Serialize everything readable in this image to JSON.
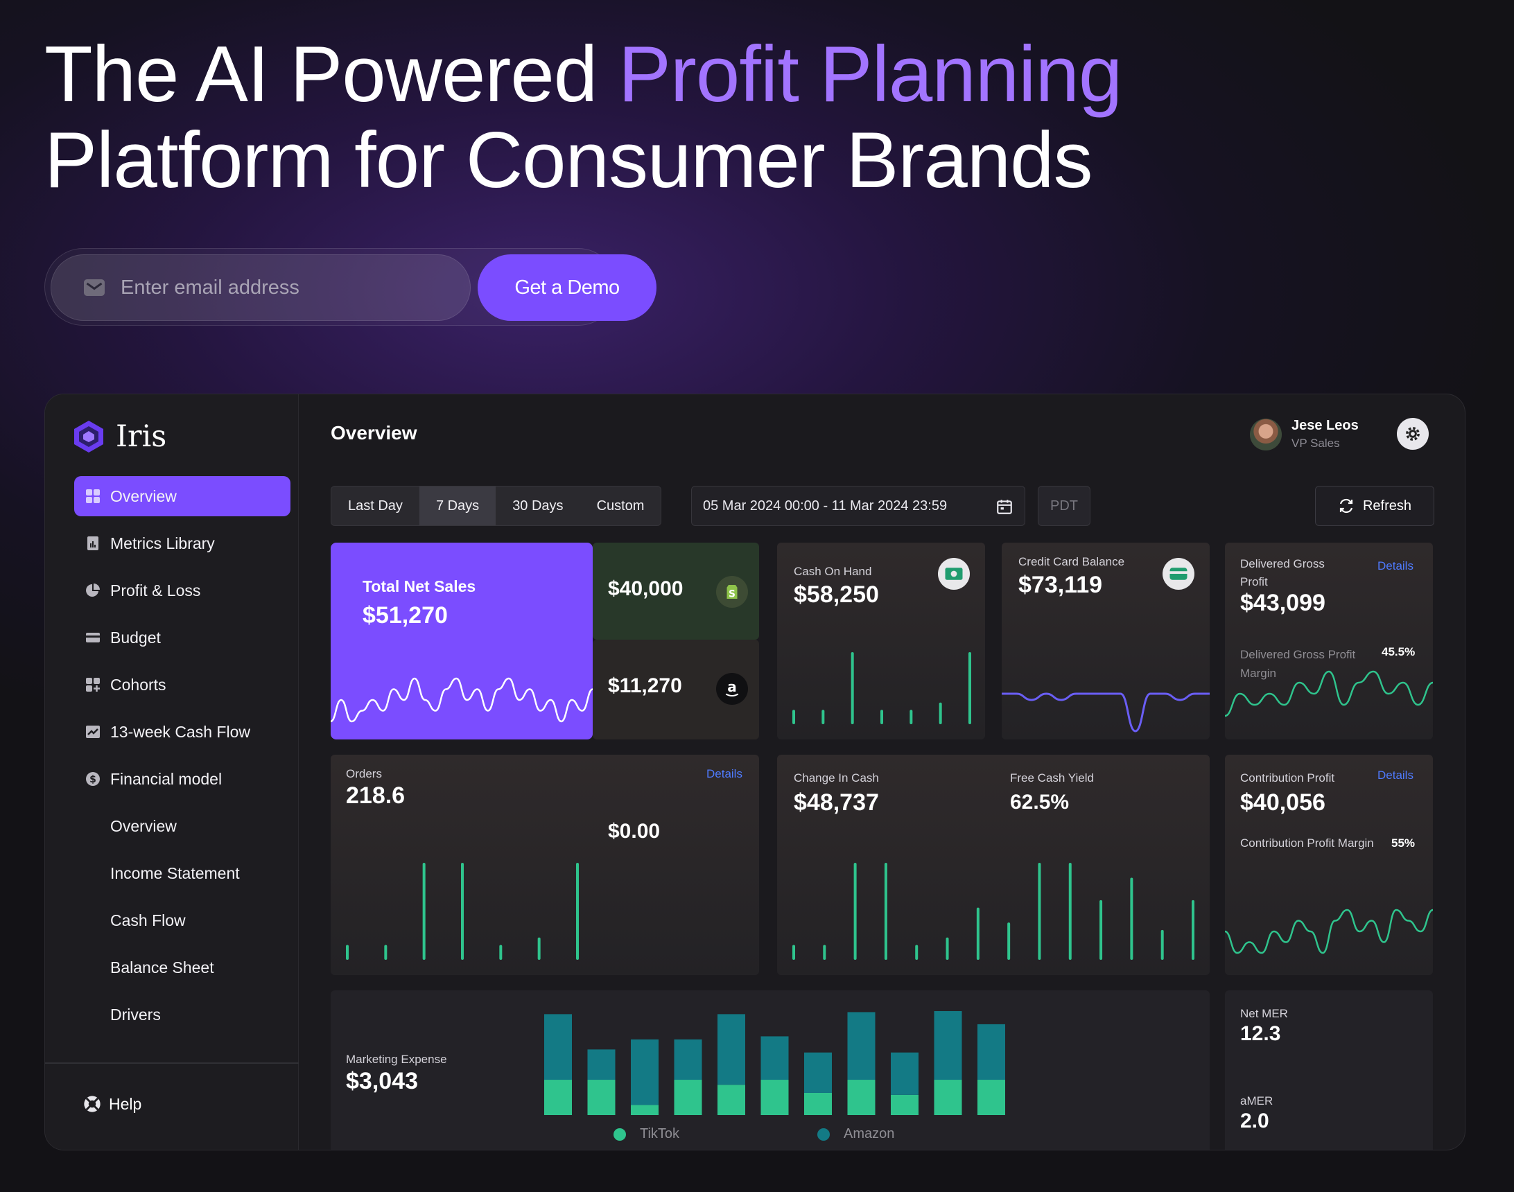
{
  "hero": {
    "title_part1": "The AI Powered ",
    "title_accent": "Profit Planning",
    "title_line2": "Platform for Consumer Brands",
    "email_placeholder": "Enter email address",
    "cta": "Get a Demo"
  },
  "sidebar": {
    "brand": "Iris",
    "items": [
      {
        "label": "Overview",
        "icon": "grid-icon",
        "active": true
      },
      {
        "label": "Metrics Library",
        "icon": "document-chart-icon"
      },
      {
        "label": "Profit & Loss",
        "icon": "pie-chart-icon"
      },
      {
        "label": "Budget",
        "icon": "card-icon"
      },
      {
        "label": "Cohorts",
        "icon": "cohorts-icon"
      },
      {
        "label": "13-week Cash Flow",
        "icon": "trend-chart-icon"
      },
      {
        "label": "Financial model",
        "icon": "dollar-circle-icon"
      },
      {
        "label": "Overview"
      },
      {
        "label": "Income Statement"
      },
      {
        "label": "Cash Flow"
      },
      {
        "label": "Balance Sheet"
      },
      {
        "label": "Drivers"
      }
    ],
    "help": "Help"
  },
  "header": {
    "title": "Overview",
    "user_name": "Jese Leos",
    "user_role": "VP Sales"
  },
  "filters": {
    "tabs": [
      "Last Day",
      "7 Days",
      "30 Days",
      "Custom"
    ],
    "active_tab": "7 Days",
    "date_range": "05 Mar 2024 00:00 - 11 Mar 2024 23:59",
    "timezone": "PDT",
    "refresh": "Refresh"
  },
  "colors": {
    "accent": "#7b4dff",
    "green": "#2fc48d",
    "teal": "#137a85",
    "blue_line": "#6a5ef5",
    "link": "#4f7bff"
  },
  "cards": {
    "total_net_sales": {
      "label": "Total Net Sales",
      "value": "$51,270"
    },
    "shopify": {
      "value": "$40,000",
      "icon": "shopify-icon"
    },
    "amazon": {
      "value": "$11,270",
      "icon": "amazon-icon"
    },
    "cash_on_hand": {
      "label": "Cash On Hand",
      "value": "$58,250",
      "icon": "cash-icon"
    },
    "credit_card": {
      "label": "Credit Card Balance",
      "value": "$73,119",
      "icon": "credit-card-icon"
    },
    "gross_profit": {
      "label": "Delivered Gross Profit",
      "value": "$43,099",
      "details": "Details",
      "sub_label": "Delivered Gross Profit Margin",
      "sub_value": "45.5%"
    },
    "orders": {
      "label": "Orders",
      "value": "218.6",
      "details": "Details",
      "secondary_value": "$0.00"
    },
    "change_in_cash": {
      "label": "Change In Cash",
      "value": "$48,737"
    },
    "free_cash_yield": {
      "label": "Free Cash Yield",
      "value": "62.5%"
    },
    "contribution_profit": {
      "label": "Contribution Profit",
      "value": "$40,056",
      "details": "Details",
      "sub_label": "Contribution Profit Margin",
      "sub_value": "55%"
    },
    "marketing": {
      "label": "Marketing Expense",
      "value": "$3,043"
    },
    "net_mer": {
      "label": "Net MER",
      "value": "12.3"
    },
    "amer": {
      "label": "aMER",
      "value": "2.0"
    }
  },
  "chart_data": [
    {
      "type": "line",
      "name": "total-net-sales-sparkline",
      "values": [
        3,
        5,
        3,
        4,
        5,
        4,
        6,
        5,
        7,
        5,
        4,
        6,
        7,
        5,
        6,
        4,
        6,
        7,
        5,
        6,
        4,
        5,
        3,
        5,
        4,
        6
      ]
    },
    {
      "type": "bar",
      "name": "cash-on-hand-bars",
      "values": [
        2,
        2,
        10,
        2,
        2,
        3,
        10
      ]
    },
    {
      "type": "line",
      "name": "credit-card-sparkline",
      "values": [
        6,
        6,
        5,
        6,
        5,
        6,
        6,
        6,
        6,
        0,
        6,
        6,
        5,
        6,
        6
      ]
    },
    {
      "type": "line",
      "name": "gross-profit-sparkline",
      "values": [
        3,
        5,
        4,
        5,
        4,
        6,
        5,
        7,
        4,
        6,
        7,
        5,
        6,
        4,
        6
      ]
    },
    {
      "type": "bar",
      "name": "orders-bars",
      "values": [
        2,
        2,
        13,
        13,
        2,
        3,
        13
      ]
    },
    {
      "type": "bar",
      "name": "change-in-cash-bars",
      "values": [
        2,
        2,
        13,
        13,
        2,
        3,
        7,
        5,
        13,
        13,
        8,
        11,
        4,
        8
      ]
    },
    {
      "type": "line",
      "name": "contribution-profit-sparkline",
      "values": [
        4,
        2,
        3,
        2,
        4,
        3,
        5,
        4,
        2,
        5,
        6,
        4,
        5,
        3,
        6,
        5,
        4,
        6
      ]
    },
    {
      "type": "bar",
      "name": "marketing-stacked-bars",
      "series": [
        {
          "name": "TikTok",
          "values": [
            35,
            35,
            10,
            35,
            30,
            35,
            22,
            35,
            20,
            35,
            35
          ]
        },
        {
          "name": "Amazon",
          "values": [
            65,
            30,
            65,
            40,
            70,
            43,
            40,
            67,
            42,
            68,
            55
          ]
        }
      ]
    }
  ]
}
